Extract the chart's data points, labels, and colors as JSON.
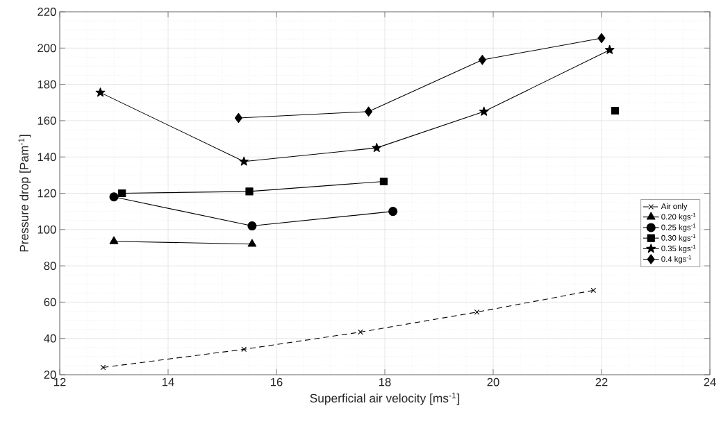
{
  "chart_data": {
    "type": "line",
    "xlabel": "Superficial air velocity [ms$^{-1}$]",
    "ylabel": "Pressure drop [Pam$^{-1}$]",
    "xlim": [
      12,
      24
    ],
    "ylim": [
      20,
      220
    ],
    "xticks": [
      12,
      14,
      16,
      18,
      20,
      22,
      24
    ],
    "yticks": [
      20,
      40,
      60,
      80,
      100,
      120,
      140,
      160,
      180,
      200,
      220
    ],
    "grid": true,
    "legend": "right",
    "series": [
      {
        "name": "Air only",
        "color": "#000000",
        "marker": "cross",
        "line_style": "dashed",
        "x": [
          12.8,
          15.4,
          17.55,
          19.7,
          21.85
        ],
        "values": [
          24,
          34,
          43.5,
          54.5,
          66.5
        ]
      },
      {
        "name": "0.20 kgs$^{-1}$",
        "color": "#000000",
        "marker": "triangle",
        "line_style": "solid",
        "x": [
          13.0,
          15.55
        ],
        "values": [
          93.5,
          92
        ]
      },
      {
        "name": "0.25 kgs$^{-1}$",
        "color": "#000000",
        "marker": "circle",
        "line_style": "solid",
        "x": [
          13.0,
          15.55,
          18.15
        ],
        "values": [
          118,
          102,
          110
        ]
      },
      {
        "name": "0.30 kgs$^{-1}$",
        "color": "#000000",
        "marker": "square",
        "line_style": "solid",
        "x": [
          13.15,
          15.5,
          17.98,
          null,
          22.25
        ],
        "values": [
          120,
          121,
          126.5,
          null,
          165.5
        ]
      },
      {
        "name": "0.35 kgs$^{-1}$",
        "color": "#000000",
        "marker": "star",
        "line_style": "solid",
        "x": [
          12.75,
          15.4,
          17.85,
          19.83,
          22.15
        ],
        "values": [
          175.5,
          137.5,
          145,
          165,
          199
        ]
      },
      {
        "name": "0.4 kgs$^{-1}$",
        "color": "#000000",
        "marker": "diamond",
        "line_style": "solid",
        "x": [
          15.3,
          17.7,
          19.8,
          22.0
        ],
        "values": [
          161.5,
          165,
          193.5,
          205.5
        ]
      }
    ]
  }
}
